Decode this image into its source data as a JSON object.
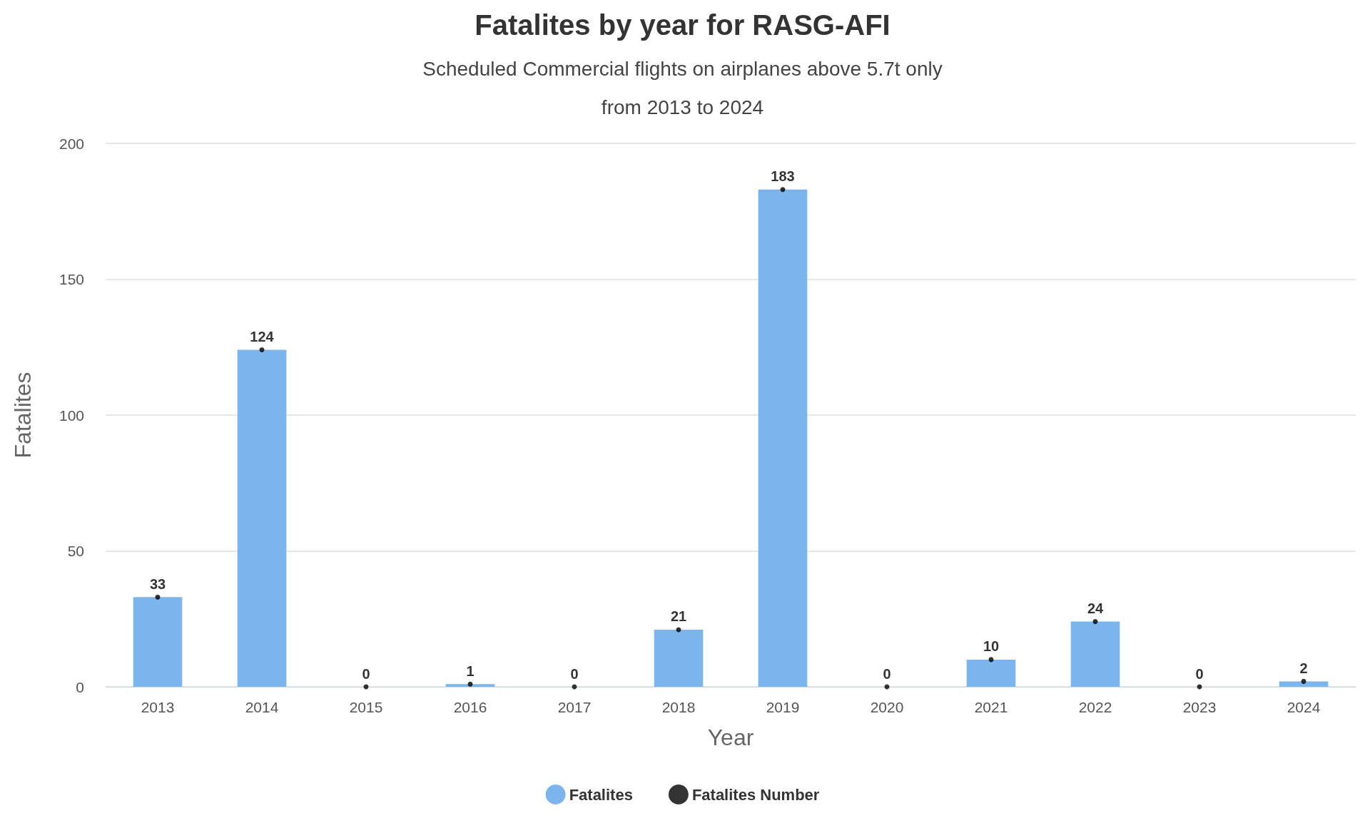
{
  "chart_data": {
    "type": "bar",
    "title": "Fatalites by year for RASG-AFI",
    "subtitle": "Scheduled Commercial flights on airplanes above 5.7t only\nfrom 2013 to 2024",
    "xlabel": "Year",
    "ylabel": "Fatalites",
    "categories": [
      "2013",
      "2014",
      "2015",
      "2016",
      "2017",
      "2018",
      "2019",
      "2020",
      "2021",
      "2022",
      "2023",
      "2024"
    ],
    "series": [
      {
        "name": "Fatalites",
        "color": "#7cb5ec",
        "values": [
          33,
          124,
          0,
          1,
          0,
          21,
          183,
          0,
          10,
          24,
          0,
          2
        ]
      },
      {
        "name": "Fatalites Number",
        "type": "scatter",
        "color": "#000000",
        "values": [
          33,
          124,
          0,
          1,
          0,
          21,
          183,
          0,
          10,
          24,
          0,
          2
        ],
        "value_labels": [
          "33",
          "124",
          "0",
          "1",
          "0",
          "21",
          "183",
          "0",
          "10",
          "24",
          "0",
          "2"
        ]
      }
    ],
    "ylim": [
      0,
      200
    ],
    "yticks": [
      0,
      50,
      100,
      150,
      200
    ],
    "grid": "y",
    "legend": "bottom",
    "marker": "circle"
  }
}
